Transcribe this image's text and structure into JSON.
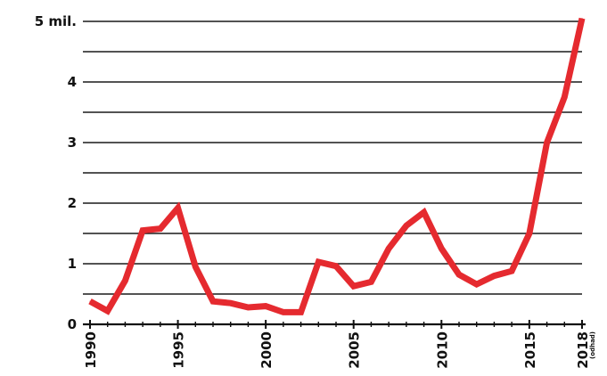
{
  "chart_data": {
    "type": "line",
    "title": "",
    "xlabel": "",
    "ylabel": "",
    "x": [
      1990,
      1991,
      1992,
      1993,
      1994,
      1995,
      1996,
      1997,
      1998,
      1999,
      2000,
      2001,
      2002,
      2003,
      2004,
      2005,
      2006,
      2007,
      2008,
      2009,
      2010,
      2011,
      2012,
      2013,
      2014,
      2015,
      2016,
      2017,
      2018
    ],
    "series": [
      {
        "values": [
          0.38,
          0.22,
          0.72,
          1.55,
          1.58,
          1.92,
          0.95,
          0.38,
          0.35,
          0.28,
          0.3,
          0.2,
          0.2,
          1.03,
          0.96,
          0.63,
          0.7,
          1.25,
          1.63,
          1.85,
          1.25,
          0.82,
          0.66,
          0.8,
          0.88,
          1.5,
          3.0,
          3.75,
          5.05
        ]
      }
    ],
    "xlim": [
      1990,
      2018
    ],
    "ylim": [
      0,
      5
    ],
    "grid": true,
    "yticks": [
      {
        "value": 0,
        "label": "0"
      },
      {
        "value": 1,
        "label": "1"
      },
      {
        "value": 2,
        "label": "2"
      },
      {
        "value": 3,
        "label": "3"
      },
      {
        "value": 4,
        "label": "4"
      },
      {
        "value": 5,
        "label": "5 mil."
      }
    ],
    "xticks": [
      {
        "value": 1990,
        "label": "1990"
      },
      {
        "value": 1995,
        "label": "1995"
      },
      {
        "value": 2000,
        "label": "2000"
      },
      {
        "value": 2005,
        "label": "2005"
      },
      {
        "value": 2010,
        "label": "2010"
      },
      {
        "value": 2015,
        "label": "2015"
      },
      {
        "value": 2018,
        "label": "2018",
        "note": "(odhad)"
      }
    ],
    "line_color": "#e52a2f"
  }
}
